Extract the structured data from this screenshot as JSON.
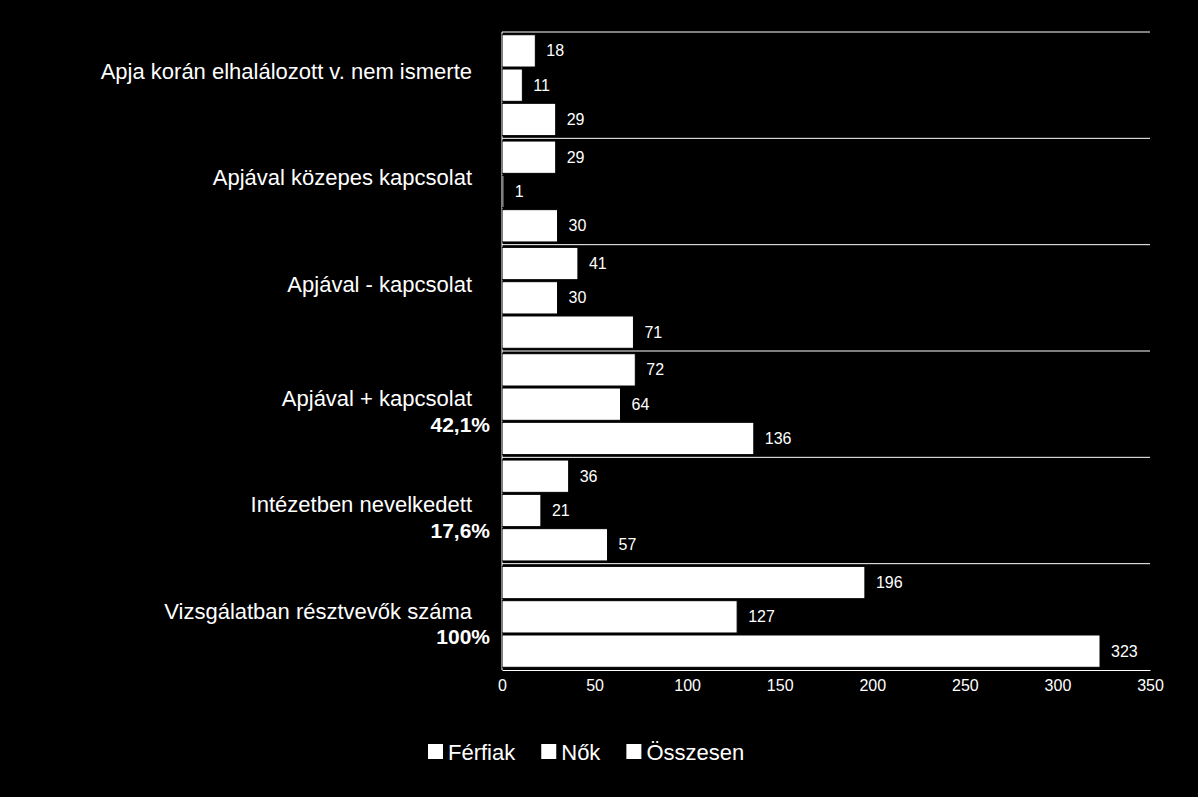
{
  "chart_data": {
    "type": "bar",
    "orientation": "horizontal",
    "categories": [
      "Apja korán elhalálozott v. nem ismerte",
      "Apjával közepes kapcsolat",
      "Apjával - kapcsolat",
      "Apjával + kapcsolat",
      "Intézetben nevelkedett",
      "Vizsgálatban résztvevők száma"
    ],
    "category_notes": [
      null,
      null,
      null,
      "42,1%",
      "17,6%",
      "100%"
    ],
    "series": [
      {
        "name": "Férfiak",
        "color": "#ffffff",
        "values": [
          18,
          29,
          41,
          72,
          36,
          196
        ]
      },
      {
        "name": "Nők",
        "color": "#ffffff",
        "values": [
          11,
          1,
          30,
          64,
          21,
          127
        ]
      },
      {
        "name": "Összesen",
        "color": "#ffffff",
        "values": [
          29,
          30,
          71,
          136,
          57,
          323
        ]
      }
    ],
    "xlim": [
      0,
      350
    ],
    "xticks": [
      0,
      50,
      100,
      150,
      200,
      250,
      300,
      350
    ],
    "grid": false,
    "legend": "bottom",
    "data_labels": true
  }
}
